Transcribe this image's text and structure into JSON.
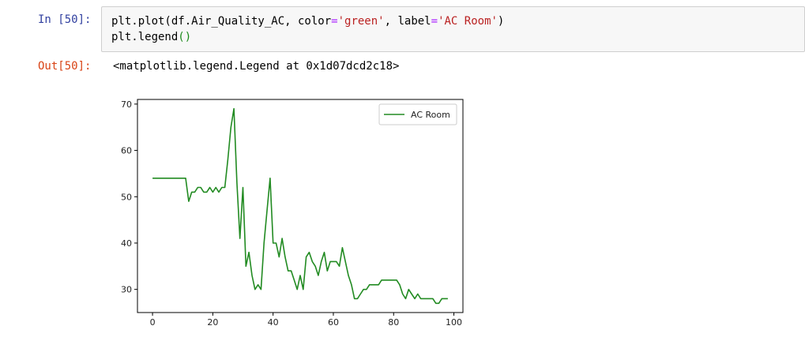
{
  "cell": {
    "in_prompt": "In [50]:",
    "out_prompt": "Out[50]:",
    "code_line1": {
      "a": "plt.plot(df.Air_Quality_AC, color",
      "eq1": "=",
      "color_str": "'green'",
      "b": ", label",
      "eq2": "=",
      "label_str": "'AC Room'",
      "c": ")"
    },
    "code_line2": {
      "a": "plt.legend",
      "paren": "()"
    },
    "output_text": "<matplotlib.legend.Legend at 0x1d07dcd2c18>"
  },
  "chart_data": {
    "type": "line",
    "series": [
      {
        "name": "AC Room",
        "color": "#228B22",
        "x": [
          0,
          1,
          2,
          3,
          4,
          5,
          6,
          7,
          8,
          9,
          10,
          11,
          12,
          13,
          14,
          15,
          16,
          17,
          18,
          19,
          20,
          21,
          22,
          23,
          24,
          25,
          26,
          27,
          28,
          29,
          30,
          31,
          32,
          33,
          34,
          35,
          36,
          37,
          38,
          39,
          40,
          41,
          42,
          43,
          44,
          45,
          46,
          47,
          48,
          49,
          50,
          51,
          52,
          53,
          54,
          55,
          56,
          57,
          58,
          59,
          60,
          61,
          62,
          63,
          64,
          65,
          66,
          67,
          68,
          69,
          70,
          71,
          72,
          73,
          74,
          75,
          76,
          77,
          78,
          79,
          80,
          81,
          82,
          83,
          84,
          85,
          86,
          87,
          88,
          89,
          90,
          91,
          92,
          93,
          94,
          95,
          96,
          97,
          98
        ],
        "y": [
          54,
          54,
          54,
          54,
          54,
          54,
          54,
          54,
          54,
          54,
          54,
          54,
          49,
          51,
          51,
          52,
          52,
          51,
          51,
          52,
          51,
          52,
          51,
          52,
          52,
          58,
          65,
          69,
          53,
          41,
          52,
          35,
          38,
          33,
          30,
          31,
          30,
          40,
          47,
          54,
          40,
          40,
          37,
          41,
          37,
          34,
          34,
          32,
          30,
          33,
          30,
          37,
          38,
          36,
          35,
          33,
          36,
          38,
          34,
          36,
          36,
          36,
          35,
          39,
          36,
          33,
          31,
          28,
          28,
          29,
          30,
          30,
          31,
          31,
          31,
          31,
          32,
          32,
          32,
          32,
          32,
          32,
          31,
          29,
          28,
          30,
          29,
          28,
          29,
          28,
          28,
          28,
          28,
          28,
          27,
          27,
          28,
          28,
          28
        ]
      }
    ],
    "xlim": [
      -5,
      103
    ],
    "ylim": [
      25,
      71
    ],
    "xticks": [
      0,
      20,
      40,
      60,
      80,
      100
    ],
    "yticks": [
      30,
      40,
      50,
      60,
      70
    ],
    "legend_position": "top-right",
    "grid": false
  }
}
